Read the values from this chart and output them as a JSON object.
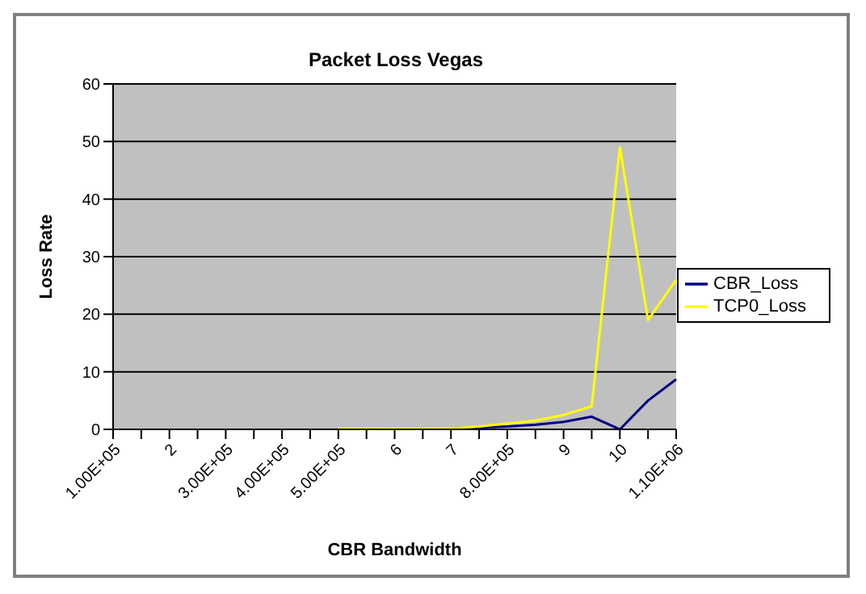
{
  "chart_data": {
    "type": "line",
    "title": "Packet Loss Vegas",
    "xlabel": "CBR Bandwidth",
    "ylabel": "Loss Rate",
    "categories": [
      "1.00E+05",
      null,
      "2",
      null,
      "3.00E+05",
      null,
      "4.00E+05",
      null,
      "5.00E+05",
      null,
      "6",
      null,
      "7",
      null,
      "8.00E+05",
      null,
      "9",
      null,
      "10",
      null,
      "1.10E+06"
    ],
    "series": [
      {
        "name": "CBR_Loss",
        "color": "#000080",
        "values": [
          null,
          null,
          null,
          null,
          null,
          null,
          null,
          null,
          null,
          null,
          null,
          null,
          0.2,
          0.3,
          0.5,
          0.8,
          1.3,
          2.2,
          0,
          5,
          8.7
        ]
      },
      {
        "name": "TCP0_Loss",
        "color": "#ffff00",
        "values": [
          null,
          null,
          null,
          null,
          null,
          null,
          null,
          null,
          0.1,
          0.1,
          0.1,
          0.1,
          0.2,
          0.5,
          1,
          1.5,
          2.5,
          4,
          49,
          19,
          26
        ]
      }
    ],
    "ylim": [
      0,
      60
    ],
    "yticks": [
      0,
      10,
      20,
      30,
      40,
      50,
      60
    ],
    "grid": "y",
    "legend": "right",
    "marker": "none",
    "line_style": "solid"
  }
}
